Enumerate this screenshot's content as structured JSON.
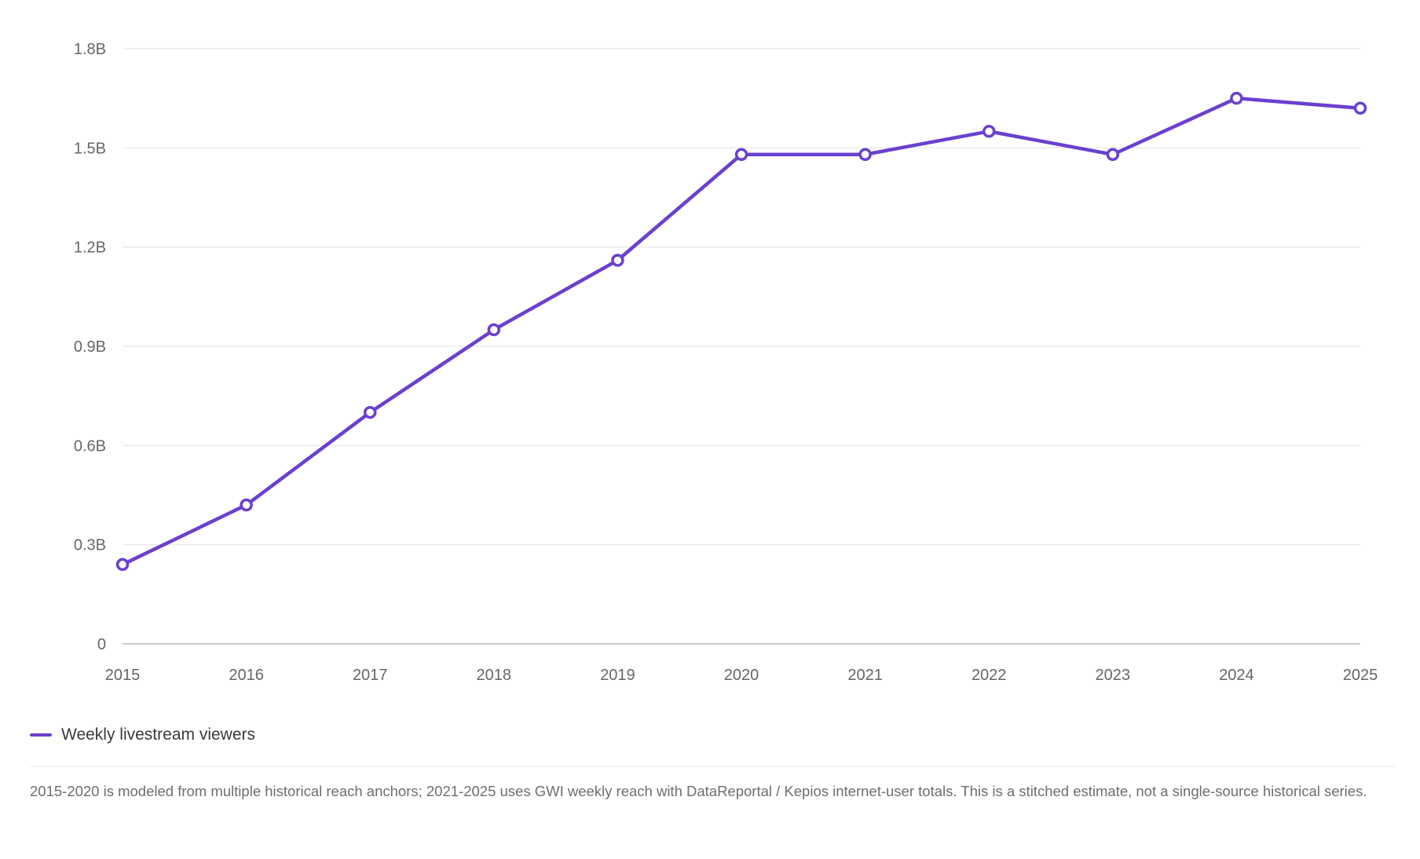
{
  "chart_data": {
    "type": "line",
    "title": "",
    "xlabel": "",
    "ylabel": "",
    "x": [
      "2015",
      "2016",
      "2017",
      "2018",
      "2019",
      "2020",
      "2021",
      "2022",
      "2023",
      "2024",
      "2025"
    ],
    "series": [
      {
        "name": "Weekly livestream viewers",
        "values": [
          0.24,
          0.42,
          0.7,
          0.95,
          1.16,
          1.48,
          1.48,
          1.55,
          1.48,
          1.65,
          1.62
        ],
        "color": "#6a40d0"
      }
    ],
    "ylim": [
      0,
      1.8
    ],
    "yticks": [
      0,
      0.3,
      0.6,
      0.9,
      1.2,
      1.5,
      1.8
    ],
    "ytick_labels": [
      "0",
      "0.3B",
      "0.6B",
      "0.9B",
      "1.2B",
      "1.5B",
      "1.8B"
    ],
    "grid": true,
    "legend_position": "bottom-left",
    "colors": {
      "grid": "#e6e6e6",
      "axis": "#b8b8b8",
      "marker_fill": "#ffffff"
    }
  },
  "legend": {
    "label": "Weekly livestream viewers"
  },
  "footnote": "2015-2020 is modeled from multiple historical reach anchors; 2021-2025 uses GWI weekly reach with DataReportal / Kepios internet-user totals. This is a stitched estimate, not a single-source historical series."
}
